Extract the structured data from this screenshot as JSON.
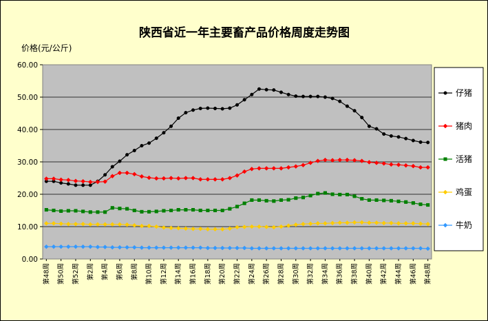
{
  "chart_data": {
    "type": "line",
    "title": "陕西省近一年主要畜产品价格周度走势图",
    "ylabel": "价格(元/公斤)",
    "xlabel": "",
    "ylim": [
      0,
      60
    ],
    "yticks": [
      "0.00",
      "10.00",
      "20.00",
      "30.00",
      "40.00",
      "50.00",
      "60.00"
    ],
    "grid": true,
    "legend_position": "right",
    "categories": [
      "第48周",
      "第49周",
      "第50周",
      "第51周",
      "第52周",
      "第1周",
      "第2周",
      "第3周",
      "第4周",
      "第5周",
      "第6周",
      "第7周",
      "第8周",
      "第9周",
      "第10周",
      "第11周",
      "第12周",
      "第13周",
      "第14周",
      "第15周",
      "第16周",
      "第17周",
      "第18周",
      "第19周",
      "第20周",
      "第21周",
      "第22周",
      "第23周",
      "第24周",
      "第25周",
      "第26周",
      "第27周",
      "第28周",
      "第29周",
      "第30周",
      "第31周",
      "第32周",
      "第33周",
      "第34周",
      "第35周",
      "第36周",
      "第37周",
      "第38周",
      "第39周",
      "第40周",
      "第41周",
      "第42周",
      "第43周",
      "第44周",
      "第45周",
      "第46周",
      "第47周",
      "第48周"
    ],
    "x_tick_labels": [
      "第48周",
      "第50周",
      "第52周",
      "第2周",
      "第4周",
      "第6周",
      "第8周",
      "第10周",
      "第12周",
      "第14周",
      "第16周",
      "第18周",
      "第20周",
      "第22周",
      "第24周",
      "第26周",
      "第28周",
      "第30周",
      "第32周",
      "第34周",
      "第36周",
      "第38周",
      "第40周",
      "第42周",
      "第44周",
      "第46周",
      "第48周"
    ],
    "series": [
      {
        "name": "仔猪",
        "color": "#000000",
        "marker": "circle",
        "values": [
          24.0,
          24.0,
          23.5,
          23.2,
          22.8,
          22.8,
          22.8,
          24.0,
          26.0,
          28.5,
          30.2,
          32.2,
          33.5,
          35.0,
          35.8,
          37.3,
          39.0,
          41.0,
          43.5,
          45.2,
          46.0,
          46.5,
          46.6,
          46.5,
          46.4,
          46.6,
          47.6,
          49.2,
          50.8,
          52.5,
          52.3,
          52.2,
          51.5,
          50.8,
          50.3,
          50.2,
          50.2,
          50.2,
          50.0,
          49.6,
          48.7,
          47.2,
          45.8,
          43.7,
          41.0,
          40.2,
          38.6,
          38.0,
          37.7,
          37.2,
          36.6,
          36.1,
          36.0
        ]
      },
      {
        "name": "猪肉",
        "color": "#ff0000",
        "marker": "diamond",
        "values": [
          24.8,
          24.8,
          24.5,
          24.4,
          24.1,
          24.0,
          23.8,
          23.8,
          23.9,
          25.6,
          26.6,
          26.6,
          26.2,
          25.5,
          25.1,
          24.9,
          24.9,
          25.0,
          24.9,
          25.0,
          25.0,
          24.6,
          24.6,
          24.6,
          24.6,
          25.0,
          25.8,
          27.0,
          27.8,
          28.0,
          28.0,
          28.0,
          28.0,
          28.3,
          28.6,
          29.0,
          29.7,
          30.3,
          30.6,
          30.5,
          30.6,
          30.6,
          30.5,
          30.3,
          29.9,
          29.7,
          29.5,
          29.2,
          29.1,
          28.9,
          28.7,
          28.3,
          28.3
        ]
      },
      {
        "name": "活猪",
        "color": "#008000",
        "marker": "square",
        "values": [
          15.2,
          15.0,
          14.8,
          14.9,
          14.9,
          14.7,
          14.5,
          14.5,
          14.5,
          15.8,
          15.6,
          15.5,
          15.0,
          14.6,
          14.6,
          14.7,
          14.9,
          15.0,
          15.2,
          15.2,
          15.2,
          15.0,
          15.0,
          15.0,
          15.0,
          15.5,
          16.2,
          17.2,
          18.2,
          18.2,
          18.0,
          17.9,
          18.2,
          18.3,
          18.8,
          19.0,
          19.6,
          20.2,
          20.4,
          20.0,
          19.9,
          19.9,
          19.4,
          18.6,
          18.2,
          18.2,
          18.1,
          18.0,
          17.8,
          17.6,
          17.3,
          16.9,
          16.7
        ]
      },
      {
        "name": "鸡蛋",
        "color": "#ffcc00",
        "marker": "diamond",
        "values": [
          11.0,
          11.0,
          10.9,
          10.8,
          10.8,
          10.8,
          10.7,
          10.7,
          10.7,
          10.7,
          10.7,
          10.6,
          10.4,
          10.2,
          10.2,
          10.0,
          9.7,
          9.6,
          9.5,
          9.4,
          9.3,
          9.3,
          9.2,
          9.2,
          9.2,
          9.4,
          9.8,
          9.9,
          10.0,
          10.0,
          9.9,
          9.8,
          10.0,
          10.3,
          10.6,
          10.8,
          10.9,
          11.0,
          11.0,
          11.1,
          11.2,
          11.2,
          11.3,
          11.3,
          11.2,
          11.2,
          11.1,
          11.1,
          11.0,
          11.0,
          11.0,
          10.9,
          10.8
        ]
      },
      {
        "name": "牛奶",
        "color": "#3399ff",
        "marker": "diamond",
        "values": [
          3.8,
          3.8,
          3.8,
          3.8,
          3.8,
          3.8,
          3.8,
          3.7,
          3.7,
          3.6,
          3.6,
          3.6,
          3.6,
          3.5,
          3.5,
          3.5,
          3.5,
          3.5,
          3.5,
          3.5,
          3.5,
          3.5,
          3.4,
          3.4,
          3.4,
          3.4,
          3.4,
          3.4,
          3.3,
          3.3,
          3.3,
          3.3,
          3.3,
          3.3,
          3.3,
          3.3,
          3.3,
          3.3,
          3.3,
          3.3,
          3.3,
          3.3,
          3.3,
          3.3,
          3.3,
          3.3,
          3.3,
          3.3,
          3.3,
          3.3,
          3.3,
          3.3,
          3.2
        ]
      }
    ]
  }
}
